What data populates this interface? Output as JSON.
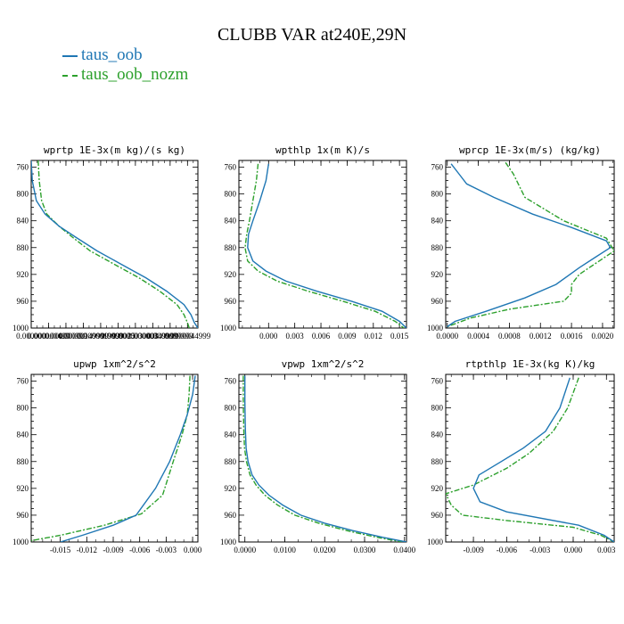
{
  "title": "CLUBB VAR at240E,29N",
  "legend": [
    {
      "label": "taus_oob",
      "color": "#1f77b4",
      "dash": "solid"
    },
    {
      "label": "taus_oob_nozm",
      "color": "#2ca02c",
      "dash": "dashdot"
    }
  ],
  "chart_data": [
    {
      "type": "line",
      "title": "wprtp  1E-3x(m kg)/(s kg)",
      "ylim": [
        1000,
        750
      ],
      "yticks": [
        760,
        800,
        840,
        880,
        920,
        960,
        1000
      ],
      "xlim": [
        0.0,
        4.8e-06
      ],
      "xticks": [
        0.0,
        5e-07,
        1e-06,
        1.5e-06,
        2e-06,
        2.5e-06,
        3e-06,
        3.5e-06,
        4e-06,
        4.5e-06
      ],
      "xticklabels": [
        "0.000000",
        "0.000000499",
        "0.000000999",
        "0.00000149999",
        "0.0000019999",
        "0.0000025",
        "0.0000030000",
        "0.00000349999",
        "0.0000039999",
        "0.0000044999"
      ],
      "series": [
        {
          "name": "taus_oob",
          "x": [
            0.0,
            3e-08,
            1.5e-07,
            4e-07,
            8e-07,
            1.3e-06,
            1.9e-06,
            2.6e-06,
            3.3e-06,
            3.9e-06,
            4.4e-06,
            4.6e-06,
            4.7e-06,
            4.8e-06
          ],
          "y": [
            750,
            780,
            810,
            830,
            848,
            865,
            885,
            905,
            925,
            945,
            965,
            980,
            992,
            1000
          ]
        },
        {
          "name": "taus_oob_nozm",
          "x": [
            2e-07,
            2.3e-07,
            3e-07,
            4.5e-07,
            8e-07,
            1.2e-06,
            1.7e-06,
            2.4e-06,
            3.1e-06,
            3.7e-06,
            4.2e-06,
            4.4e-06,
            4.5e-06,
            4.55e-06
          ],
          "y": [
            750,
            780,
            810,
            830,
            848,
            865,
            885,
            905,
            925,
            945,
            965,
            980,
            992,
            1000
          ]
        }
      ]
    },
    {
      "type": "line",
      "title": "wpthlp  1x(m K)/s",
      "ylim": [
        1000,
        750
      ],
      "yticks": [
        760,
        800,
        840,
        880,
        920,
        960,
        1000
      ],
      "xlim": [
        -0.0034,
        0.0158
      ],
      "xticks": [
        0.0,
        0.003,
        0.006,
        0.009,
        0.012,
        0.015
      ],
      "xticklabels": [
        "0.000",
        "0.003",
        "0.006",
        "0.009",
        "0.012",
        "0.015"
      ],
      "series": [
        {
          "name": "taus_oob",
          "x": [
            0.0,
            -0.0003,
            -0.001,
            -0.0018,
            -0.0023,
            -0.0024,
            -0.0018,
            -0.0003,
            0.002,
            0.0055,
            0.0095,
            0.013,
            0.015,
            0.0158
          ],
          "y": [
            755,
            780,
            810,
            840,
            860,
            880,
            900,
            915,
            930,
            945,
            960,
            975,
            990,
            1000
          ]
        },
        {
          "name": "taus_oob_nozm",
          "x": [
            -0.0012,
            -0.0014,
            -0.0018,
            -0.0022,
            -0.0025,
            -0.0027,
            -0.0024,
            -0.0012,
            0.001,
            0.0045,
            0.0085,
            0.0122,
            0.0145,
            0.0155
          ],
          "y": [
            755,
            780,
            810,
            840,
            860,
            880,
            900,
            915,
            930,
            945,
            960,
            975,
            990,
            1000
          ]
        }
      ]
    },
    {
      "type": "line",
      "title": "wprcp  1E-3x(m/s) (kg/kg)",
      "ylim": [
        1000,
        750
      ],
      "yticks": [
        760,
        800,
        840,
        880,
        920,
        960,
        1000
      ],
      "xlim": [
        -2e-05,
        0.00215
      ],
      "xticks": [
        0.0,
        0.0004,
        0.0008,
        0.0012,
        0.0016,
        0.002
      ],
      "xticklabels": [
        "0.0000",
        "0.0004",
        "0.0008",
        "0.0012",
        "0.0016",
        "0.0020"
      ],
      "series": [
        {
          "name": "taus_oob",
          "x": [
            5e-05,
            0.00015,
            0.00025,
            0.0006,
            0.0011,
            0.0016,
            0.00205,
            0.0021,
            0.0019,
            0.0017,
            0.0014,
            0.001,
            0.0005,
            0.0001,
            0.0
          ],
          "y": [
            755,
            770,
            785,
            805,
            830,
            850,
            870,
            880,
            895,
            910,
            935,
            955,
            975,
            990,
            998
          ]
        },
        {
          "name": "taus_oob_nozm",
          "x": [
            0.00075,
            0.00085,
            0.001,
            0.0015,
            0.00205,
            0.00215,
            0.0017,
            0.0016,
            0.0016,
            0.0015,
            0.0008,
            0.0003,
            0.0
          ],
          "y": [
            753,
            770,
            805,
            840,
            866,
            885,
            920,
            935,
            948,
            960,
            972,
            985,
            998
          ]
        }
      ]
    },
    {
      "type": "line",
      "title": "upwp  1xm^2/s^2",
      "ylim": [
        1000,
        750
      ],
      "yticks": [
        760,
        800,
        840,
        880,
        920,
        960,
        1000
      ],
      "xlim": [
        -0.0183,
        0.0006
      ],
      "xticks": [
        -0.015,
        -0.012,
        -0.009,
        -0.006,
        -0.003,
        0.0
      ],
      "xticklabels": [
        "-0.015",
        "-0.012",
        "-0.009",
        "-0.006",
        "-0.003",
        "0.000"
      ],
      "series": [
        {
          "name": "taus_oob",
          "x": [
            0.0003,
            0.0,
            -0.0006,
            -0.0014,
            -0.0026,
            -0.0042,
            -0.0064,
            -0.009,
            -0.0125,
            -0.015
          ],
          "y": [
            752,
            780,
            810,
            840,
            880,
            920,
            960,
            975,
            990,
            1000
          ]
        },
        {
          "name": "taus_oob_nozm",
          "x": [
            -0.0003,
            -0.0004,
            -0.0006,
            -0.0012,
            -0.0022,
            -0.0034,
            -0.0058,
            -0.01,
            -0.015,
            -0.0183
          ],
          "y": [
            752,
            780,
            810,
            840,
            880,
            930,
            958,
            975,
            990,
            998
          ]
        }
      ]
    },
    {
      "type": "line",
      "title": "vpwp  1xm^2/s^2",
      "ylim": [
        1000,
        750
      ],
      "yticks": [
        760,
        800,
        840,
        880,
        920,
        960,
        1000
      ],
      "xlim": [
        -0.0015,
        0.0405
      ],
      "xticks": [
        0.0,
        0.01,
        0.02,
        0.03,
        0.04
      ],
      "xticklabels": [
        "0.0000",
        "0.0100",
        "0.0200",
        "0.0300",
        "0.0400"
      ],
      "series": [
        {
          "name": "taus_oob",
          "x": [
            0.0,
            0.0,
            0.0001,
            0.0003,
            0.0008,
            0.0018,
            0.0035,
            0.006,
            0.0095,
            0.014,
            0.02,
            0.027,
            0.0345,
            0.0405
          ],
          "y": [
            752,
            790,
            830,
            860,
            880,
            900,
            915,
            930,
            945,
            960,
            972,
            983,
            993,
            1000
          ]
        },
        {
          "name": "taus_oob_nozm",
          "x": [
            -0.0004,
            -0.0004,
            -0.0003,
            -0.0001,
            0.0004,
            0.0013,
            0.0028,
            0.005,
            0.0082,
            0.0125,
            0.0185,
            0.0255,
            0.033,
            0.0395
          ],
          "y": [
            752,
            790,
            830,
            860,
            880,
            900,
            915,
            930,
            945,
            960,
            972,
            983,
            993,
            1000
          ]
        }
      ]
    },
    {
      "type": "line",
      "title": "rtpthlp  1E-3x(kg K)/kg",
      "ylim": [
        1000,
        750
      ],
      "yticks": [
        760,
        800,
        840,
        880,
        920,
        960,
        1000
      ],
      "xlim": [
        -0.0115,
        0.0037
      ],
      "xticks": [
        -0.009,
        -0.006,
        -0.003,
        0.0,
        0.003
      ],
      "xticklabels": [
        "-0.009",
        "-0.006",
        "-0.003",
        "0.000",
        "0.003"
      ],
      "series": [
        {
          "name": "taus_oob",
          "x": [
            -0.0003,
            -0.0012,
            -0.0025,
            -0.0045,
            -0.0065,
            -0.0085,
            -0.009,
            -0.0084,
            -0.006,
            0.0005,
            0.0028,
            0.0037
          ],
          "y": [
            755,
            800,
            835,
            860,
            880,
            900,
            920,
            940,
            955,
            975,
            990,
            1000
          ]
        },
        {
          "name": "taus_oob_nozm",
          "x": [
            0.0005,
            -0.0005,
            -0.0018,
            -0.004,
            -0.006,
            -0.009,
            -0.0115,
            -0.011,
            -0.01,
            -0.006,
            0.0,
            0.0025,
            0.0037
          ],
          "y": [
            755,
            800,
            835,
            868,
            890,
            915,
            928,
            945,
            960,
            968,
            978,
            990,
            1000
          ]
        }
      ]
    }
  ]
}
